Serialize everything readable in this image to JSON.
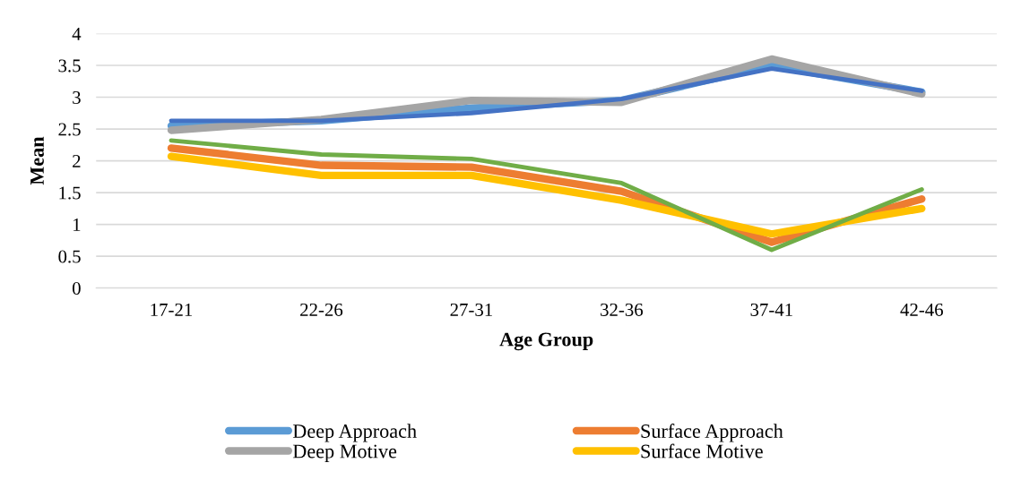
{
  "chart_data": {
    "type": "line",
    "xlabel": "Age Group",
    "ylabel": "Mean",
    "categories": [
      "17-21",
      "22-26",
      "27-31",
      "32-36",
      "37-41",
      "42-46"
    ],
    "series": [
      {
        "name": "Deep Approach",
        "color": "#5b9bd5",
        "values": [
          2.55,
          2.63,
          2.83,
          2.95,
          3.5,
          3.08
        ]
      },
      {
        "name": "Surface Approach",
        "color": "#ed7d31",
        "values": [
          2.2,
          1.93,
          1.9,
          1.52,
          0.72,
          1.4
        ]
      },
      {
        "name": "Deep Motive",
        "color": "#a5a5a5",
        "values": [
          2.48,
          2.65,
          2.95,
          2.92,
          3.6,
          3.05
        ]
      },
      {
        "name": "Surface Motive",
        "color": "#ffc000",
        "values": [
          2.07,
          1.77,
          1.77,
          1.38,
          0.85,
          1.25
        ]
      },
      {
        "color": "#4472c4",
        "values": [
          2.63,
          2.63,
          2.75,
          2.97,
          3.45,
          3.1
        ]
      },
      {
        "color": "#70ad47",
        "values": [
          2.32,
          2.1,
          2.03,
          1.65,
          0.6,
          1.55
        ]
      }
    ],
    "ylim": [
      0,
      4
    ],
    "yticks": [
      0,
      0.5,
      1,
      1.5,
      2,
      2.5,
      3,
      3.5,
      4
    ],
    "grid": "y",
    "legend": "bottom",
    "marker": "none",
    "line_style": "solid"
  }
}
